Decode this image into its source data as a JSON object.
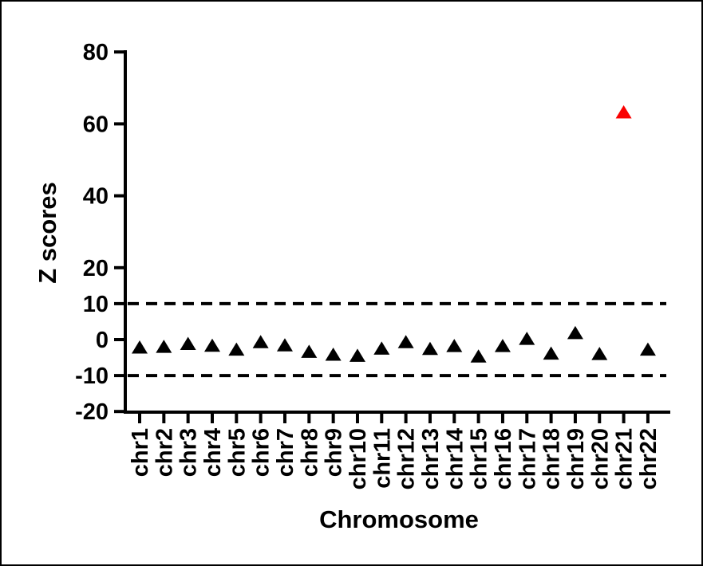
{
  "chart_data": {
    "type": "scatter",
    "marker_shape": "triangle",
    "title": "",
    "xlabel": "Chromosome",
    "ylabel": "Z scores",
    "ylim": [
      -20,
      80
    ],
    "y_ticks": [
      80,
      60,
      40,
      20,
      10,
      0,
      -10,
      -20
    ],
    "grid": false,
    "legend_position": "none",
    "axis_color": "#000000",
    "default_color": "#000000",
    "highlight_color": "#fa0000",
    "threshold_lines": {
      "style": "dashed",
      "color": "#000000",
      "values": [
        10,
        -10
      ]
    },
    "points": [
      {
        "category": "chr1",
        "value": -2.1,
        "highlight": false
      },
      {
        "category": "chr2",
        "value": -1.9,
        "highlight": false
      },
      {
        "category": "chr3",
        "value": -1.1,
        "highlight": false
      },
      {
        "category": "chr4",
        "value": -1.6,
        "highlight": false
      },
      {
        "category": "chr5",
        "value": -2.7,
        "highlight": false
      },
      {
        "category": "chr6",
        "value": -0.6,
        "highlight": false
      },
      {
        "category": "chr7",
        "value": -1.5,
        "highlight": false
      },
      {
        "category": "chr8",
        "value": -3.3,
        "highlight": false
      },
      {
        "category": "chr9",
        "value": -4.1,
        "highlight": false
      },
      {
        "category": "chr10",
        "value": -4.4,
        "highlight": false
      },
      {
        "category": "chr11",
        "value": -2.4,
        "highlight": false
      },
      {
        "category": "chr12",
        "value": -0.6,
        "highlight": false
      },
      {
        "category": "chr13",
        "value": -2.5,
        "highlight": false
      },
      {
        "category": "chr14",
        "value": -1.7,
        "highlight": false
      },
      {
        "category": "chr15",
        "value": -4.6,
        "highlight": false
      },
      {
        "category": "chr16",
        "value": -1.7,
        "highlight": false
      },
      {
        "category": "chr17",
        "value": 0.3,
        "highlight": false
      },
      {
        "category": "chr18",
        "value": -3.8,
        "highlight": false
      },
      {
        "category": "chr19",
        "value": 1.9,
        "highlight": false
      },
      {
        "category": "chr20",
        "value": -3.9,
        "highlight": false
      },
      {
        "category": "chr21",
        "value": 63.3,
        "highlight": true
      },
      {
        "category": "chr22",
        "value": -2.7,
        "highlight": false
      }
    ]
  }
}
